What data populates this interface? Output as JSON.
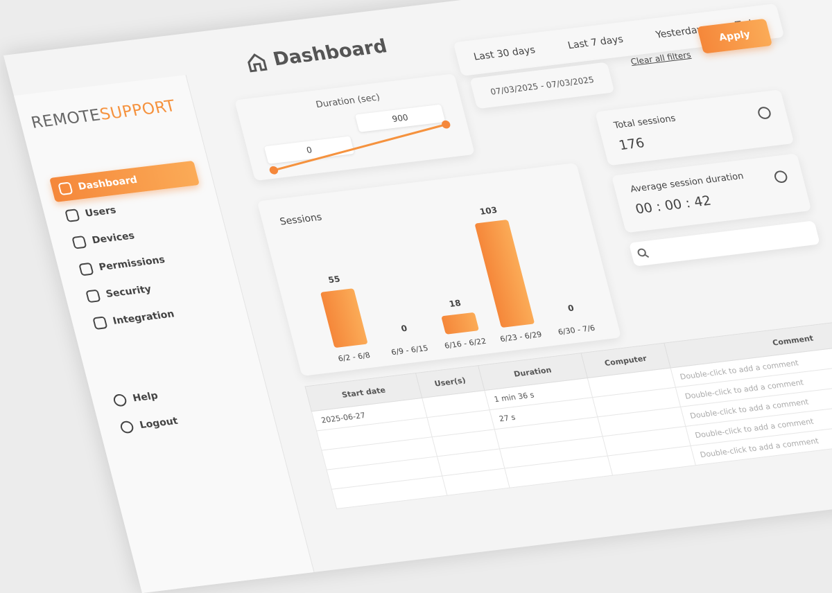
{
  "brand": {
    "logo_a": "REMOTE",
    "logo_b": "SUPPORT"
  },
  "nav": {
    "items": [
      "Dashboard",
      "Users",
      "Devices",
      "Permissions",
      "Security",
      "Integration"
    ],
    "active": 0,
    "footer": [
      "Help",
      "Logout"
    ]
  },
  "header": {
    "title": "Dashboard"
  },
  "filters": {
    "presets": [
      "Last 30 days",
      "Last 7 days",
      "Yesterday",
      "Today"
    ],
    "date_range": "07/03/2025 - 07/03/2025",
    "clear": "Clear all filters",
    "apply": "Apply",
    "duration": {
      "label": "Duration (sec)",
      "min": 0,
      "max": 900
    }
  },
  "stats": [
    {
      "label": "Total sessions",
      "value": 176
    },
    {
      "label": "Average session duration",
      "value": "00 : 00 : 42"
    }
  ],
  "chart_data": {
    "type": "bar",
    "title": "Sessions",
    "categories": [
      "6/2 - 6/8",
      "6/9 - 6/15",
      "6/16 - 6/22",
      "6/23 - 6/29",
      "6/30 - 7/6"
    ],
    "values": [
      55,
      0,
      18,
      103,
      0
    ],
    "color": "#f5923e"
  },
  "table": {
    "columns": [
      "Start date",
      "User(s)",
      "Duration",
      "Computer",
      "Comment"
    ],
    "rows": [
      [
        "2025-06-27",
        null,
        "1 min 36 s",
        null,
        "Double-click to add a comment"
      ],
      [
        null,
        null,
        "27 s",
        null,
        "Double-click to add a comment"
      ],
      [
        null,
        null,
        null,
        null,
        "Double-click to add a comment"
      ],
      [
        null,
        null,
        null,
        null,
        "Double-click to add a comment"
      ],
      [
        null,
        null,
        null,
        null,
        "Double-click to add a comment"
      ]
    ]
  }
}
